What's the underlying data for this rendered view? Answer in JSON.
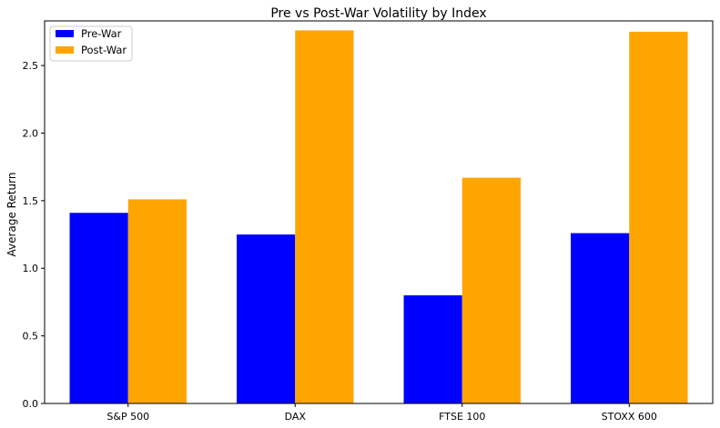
{
  "chart_data": {
    "type": "bar",
    "title": "Pre vs Post-War Volatility by Index",
    "xlabel": "",
    "ylabel": "Average Return",
    "categories": [
      "S&P 500",
      "DAX",
      "FTSE 100",
      "STOXX 600"
    ],
    "series": [
      {
        "name": "Pre-War",
        "color": "#0000ff",
        "values": [
          1.41,
          1.25,
          0.8,
          1.26
        ]
      },
      {
        "name": "Post-War",
        "color": "#ffa500",
        "values": [
          1.51,
          2.76,
          1.67,
          2.75
        ]
      }
    ],
    "ylim": [
      0,
      2.83
    ],
    "yticks": [
      "0.0",
      "0.5",
      "1.0",
      "1.5",
      "2.0",
      "2.5"
    ],
    "grid": false,
    "legend_position": "top-left"
  }
}
